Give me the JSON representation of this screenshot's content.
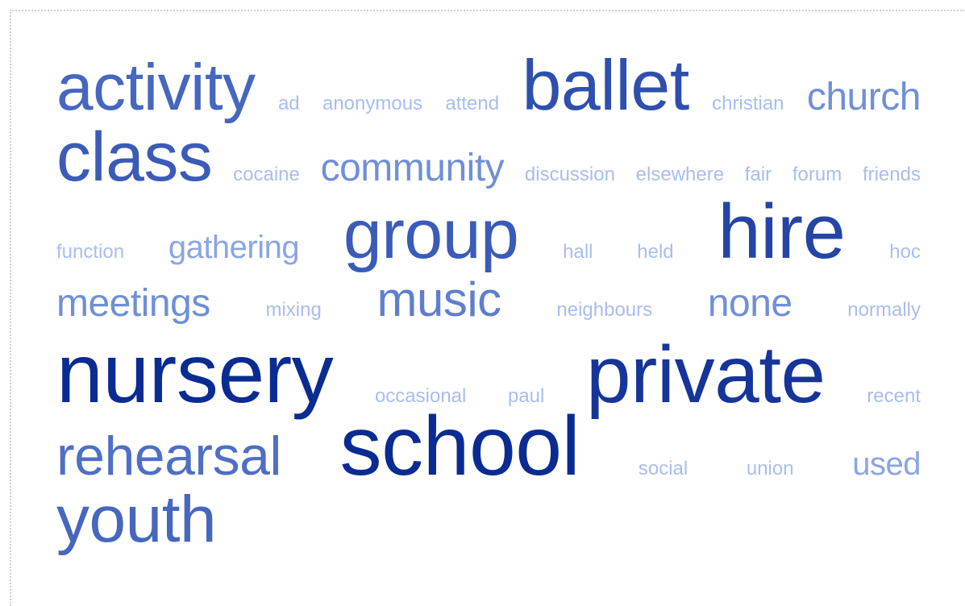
{
  "word_cloud": {
    "rows": [
      [
        "activity",
        "ad",
        "anonymous",
        "attend",
        "ballet",
        "christian",
        "church"
      ],
      [
        "class",
        "cocaine",
        "community",
        "discussion",
        "elsewhere",
        "fair",
        "forum",
        "friends"
      ],
      [
        "function",
        "gathering",
        "group",
        "hall",
        "held",
        "hire",
        "hoc"
      ],
      [
        "meetings",
        "mixing",
        "music",
        "neighbours",
        "none",
        "normally"
      ],
      [
        "nursery",
        "occasional",
        "paul",
        "private",
        "recent"
      ],
      [
        "rehearsal",
        "school",
        "social",
        "union",
        "used"
      ],
      [
        "youth"
      ]
    ]
  }
}
